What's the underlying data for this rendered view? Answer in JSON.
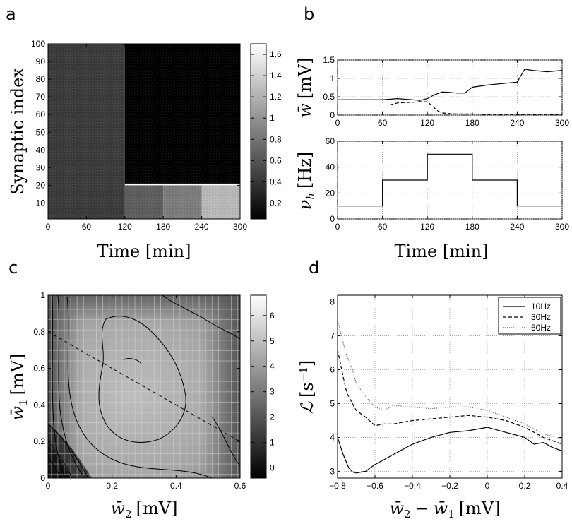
{
  "panels": {
    "a": "a",
    "b": "b",
    "c": "c",
    "d": "d"
  },
  "chart_data": [
    {
      "panel": "a",
      "type": "heatmap",
      "xlabel": "Time [min]",
      "ylabel": "Synaptic index",
      "xlim": [
        0,
        300
      ],
      "ylim": [
        1,
        100
      ],
      "xticks": [
        0,
        60,
        120,
        180,
        240,
        300
      ],
      "yticks": [
        10,
        20,
        30,
        40,
        50,
        60,
        70,
        80,
        90,
        100
      ],
      "colorbar_ticks": [
        0.2,
        0.4,
        0.6,
        0.8,
        1,
        1.2,
        1.4,
        1.6
      ],
      "colorbar_range": [
        0.05,
        1.7
      ],
      "colormap": "gray",
      "regions": [
        {
          "time": [
            0,
            120
          ],
          "synapses": [
            1,
            100
          ],
          "level": 0.43
        },
        {
          "time": [
            120,
            300
          ],
          "synapses": [
            21,
            100
          ],
          "level": 0.05
        },
        {
          "time": [
            120,
            180
          ],
          "synapses": [
            1,
            20
          ],
          "level": 0.65
        },
        {
          "time": [
            180,
            240
          ],
          "synapses": [
            1,
            20
          ],
          "level": 0.85
        },
        {
          "time": [
            240,
            300
          ],
          "synapses": [
            1,
            20
          ],
          "level": 1.25
        }
      ]
    },
    {
      "panel": "b-top",
      "type": "line",
      "xlabel": "",
      "ylabel": "w̄ [mV]",
      "xlim": [
        0,
        300
      ],
      "ylim": [
        0,
        1.5
      ],
      "xticks": [
        0,
        60,
        120,
        180,
        240,
        300
      ],
      "yticks": [
        0,
        0.5,
        1,
        1.5
      ],
      "grid": true,
      "series": [
        {
          "style": "solid",
          "x": [
            0,
            20,
            40,
            60,
            80,
            100,
            110,
            120,
            130,
            140,
            150,
            160,
            170,
            180,
            200,
            220,
            240,
            250,
            260,
            280,
            300
          ],
          "y": [
            0.42,
            0.42,
            0.42,
            0.42,
            0.45,
            0.42,
            0.4,
            0.45,
            0.56,
            0.63,
            0.62,
            0.6,
            0.6,
            0.76,
            0.82,
            0.86,
            0.9,
            1.25,
            1.22,
            1.18,
            1.22
          ]
        },
        {
          "style": "dashed",
          "x": [
            70,
            80,
            100,
            110,
            120,
            125,
            130,
            135,
            140,
            150,
            160,
            180,
            200,
            240,
            300
          ],
          "y": [
            0.28,
            0.33,
            0.35,
            0.37,
            0.36,
            0.28,
            0.18,
            0.1,
            0.06,
            0.04,
            0.03,
            0.03,
            0.02,
            0.02,
            0.02
          ]
        }
      ]
    },
    {
      "panel": "b-bottom",
      "type": "line",
      "xlabel": "Time [min]",
      "ylabel": "ν_h [Hz]",
      "xlim": [
        0,
        300
      ],
      "ylim": [
        0,
        60
      ],
      "xticks": [
        0,
        60,
        120,
        180,
        240,
        300
      ],
      "yticks": [
        0,
        20,
        40,
        60
      ],
      "grid": true,
      "series": [
        {
          "style": "solid",
          "x": [
            0,
            60,
            60,
            120,
            120,
            180,
            180,
            240,
            240,
            300
          ],
          "y": [
            10,
            10,
            30,
            30,
            50,
            50,
            30,
            30,
            10,
            10
          ]
        }
      ]
    },
    {
      "panel": "c",
      "type": "heatmap",
      "xlabel": "w̄₂ [mV]",
      "ylabel": "w̄₁ [mV]",
      "xlim": [
        0,
        0.6
      ],
      "ylim": [
        0,
        1
      ],
      "xticks": [
        0,
        0.2,
        0.4,
        0.6
      ],
      "yticks": [
        0,
        0.2,
        0.4,
        0.6,
        0.8,
        1
      ],
      "colorbar_ticks": [
        0,
        1,
        2,
        3,
        4,
        5,
        6
      ],
      "colorbar_range": [
        -0.4,
        6.8
      ],
      "colormap": "gray",
      "dashed_line": {
        "x": [
          0,
          0.6
        ],
        "y": [
          0.8,
          0.2
        ]
      }
    },
    {
      "panel": "d",
      "type": "line",
      "xlabel": "w̄₂ − w̄₁ [mV]",
      "ylabel": "ℒ [s⁻¹]",
      "xlim": [
        -0.8,
        0.4
      ],
      "ylim": [
        2.8,
        8.2
      ],
      "xticks": [
        -0.8,
        -0.6,
        -0.4,
        -0.2,
        0,
        0.2,
        0.4
      ],
      "yticks": [
        3,
        4,
        5,
        6,
        7,
        8
      ],
      "grid": true,
      "legend_position": "top-right",
      "series": [
        {
          "name": "10Hz",
          "style": "solid",
          "x": [
            -0.8,
            -0.77,
            -0.74,
            -0.72,
            -0.7,
            -0.65,
            -0.6,
            -0.55,
            -0.5,
            -0.4,
            -0.3,
            -0.2,
            -0.1,
            0,
            0.1,
            0.2,
            0.25,
            0.3,
            0.35,
            0.4
          ],
          "y": [
            4.0,
            3.5,
            3.1,
            2.98,
            2.95,
            3.0,
            3.2,
            3.35,
            3.5,
            3.8,
            4.0,
            4.15,
            4.2,
            4.3,
            4.15,
            4.0,
            3.8,
            3.85,
            3.7,
            3.6
          ]
        },
        {
          "name": "30Hz",
          "style": "dashed",
          "x": [
            -0.8,
            -0.77,
            -0.75,
            -0.72,
            -0.7,
            -0.65,
            -0.6,
            -0.55,
            -0.5,
            -0.4,
            -0.3,
            -0.2,
            -0.1,
            0,
            0.1,
            0.2,
            0.3,
            0.4
          ],
          "y": [
            6.6,
            5.8,
            5.3,
            5.0,
            4.8,
            4.6,
            4.35,
            4.4,
            4.4,
            4.5,
            4.55,
            4.6,
            4.65,
            4.6,
            4.5,
            4.3,
            4.0,
            3.8
          ]
        },
        {
          "name": "50Hz",
          "style": "dotted",
          "x": [
            -0.8,
            -0.78,
            -0.75,
            -0.72,
            -0.7,
            -0.65,
            -0.6,
            -0.55,
            -0.5,
            -0.4,
            -0.3,
            -0.2,
            -0.1,
            0,
            0.1,
            0.2,
            0.3,
            0.4
          ],
          "y": [
            7.5,
            7.0,
            6.4,
            6.0,
            5.6,
            5.2,
            4.9,
            4.8,
            4.95,
            4.9,
            4.85,
            4.9,
            4.9,
            4.8,
            4.6,
            4.4,
            4.1,
            3.95
          ]
        }
      ]
    }
  ]
}
